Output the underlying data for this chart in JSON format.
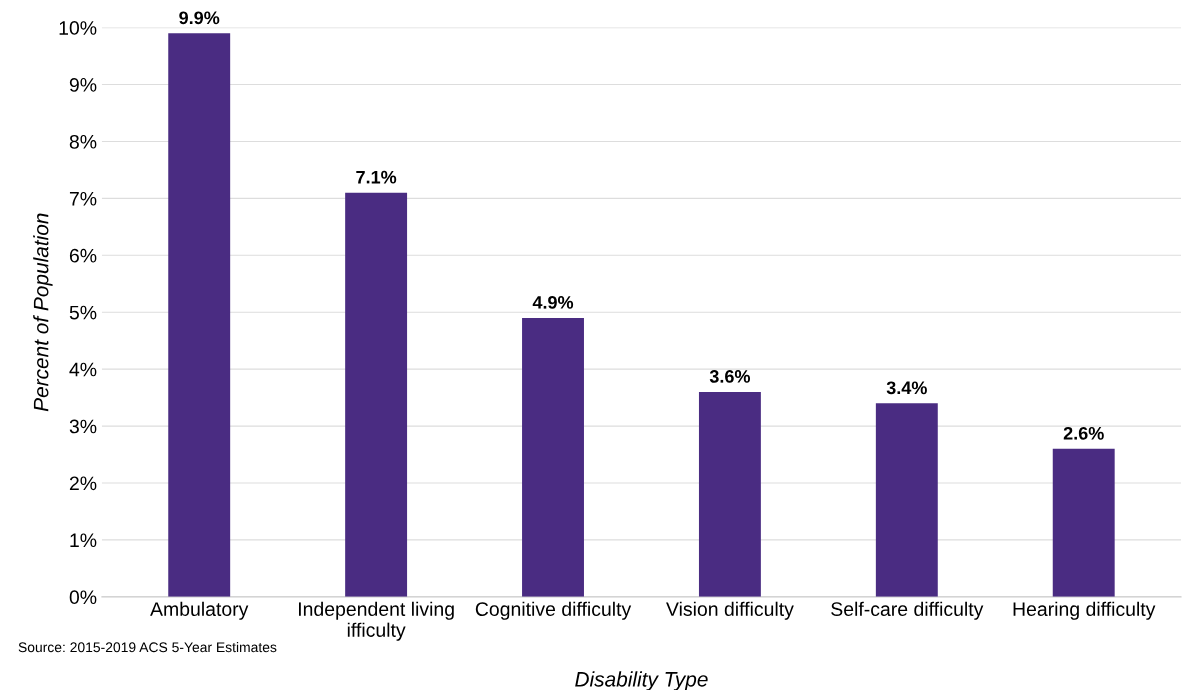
{
  "chart_data": {
    "type": "bar",
    "xlabel": "Disability Type",
    "ylabel": "Percent of Population",
    "categories": [
      "Ambulatory",
      "Independent living\nifficulty",
      "Cognitive difficulty",
      "Vision difficulty",
      "Self-care difficulty",
      "Hearing difficulty"
    ],
    "values": [
      9.9,
      7.1,
      4.9,
      3.6,
      3.4,
      2.6
    ],
    "value_labels": [
      "9.9%",
      "7.1%",
      "4.9%",
      "3.6%",
      "3.4%",
      "2.6%"
    ],
    "color": "#4a2c82",
    "ylim": [
      0,
      10
    ],
    "yticks": [
      {
        "value": 0,
        "label": "0%"
      },
      {
        "value": 1,
        "label": "1%"
      },
      {
        "value": 2,
        "label": "2%"
      },
      {
        "value": 3,
        "label": "3%"
      },
      {
        "value": 4,
        "label": "4%"
      },
      {
        "value": 5,
        "label": "5%"
      },
      {
        "value": 6,
        "label": "6%"
      },
      {
        "value": 7,
        "label": "7%"
      },
      {
        "value": 8,
        "label": "8%"
      },
      {
        "value": 9,
        "label": "9%"
      },
      {
        "value": 10,
        "label": "10%"
      }
    ],
    "grid": "y",
    "annotations": [
      "Source: 2015-2019 ACS 5-Year Estimates"
    ]
  }
}
